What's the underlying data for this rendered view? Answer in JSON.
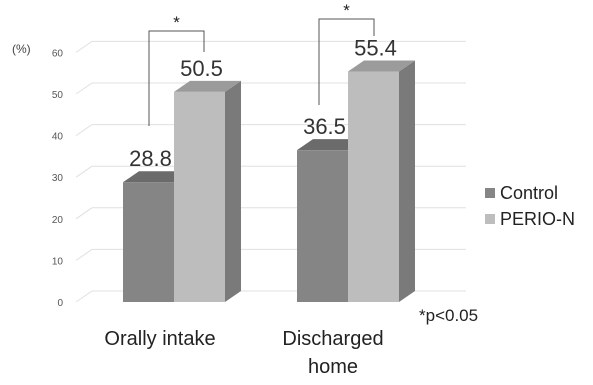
{
  "chart_data": {
    "type": "bar",
    "y_unit_label": "(%)",
    "categories": [
      "Orally intake",
      "Discharged home"
    ],
    "category_lines": [
      [
        "Orally intake"
      ],
      [
        "Discharged",
        "home"
      ]
    ],
    "series": [
      {
        "name": "Control",
        "values": [
          28.8,
          36.5
        ],
        "front_color": "#858585",
        "top_color": "#6b6b6b",
        "side_color": "#5a5a5a"
      },
      {
        "name": "PERIO-N",
        "values": [
          50.5,
          55.4
        ],
        "front_color": "#bdbdbd",
        "top_color": "#9b9b9b",
        "side_color": "#7a7a7a"
      }
    ],
    "data_labels": [
      "28.8",
      "50.5",
      "36.5",
      "55.4"
    ],
    "ylim": [
      0,
      60
    ],
    "yticks": [
      0,
      10,
      20,
      30,
      40,
      50,
      60
    ],
    "grid": true,
    "legend_position": "right",
    "significance_marks": [
      "*",
      "*"
    ],
    "footnote": "*p<0.05"
  }
}
